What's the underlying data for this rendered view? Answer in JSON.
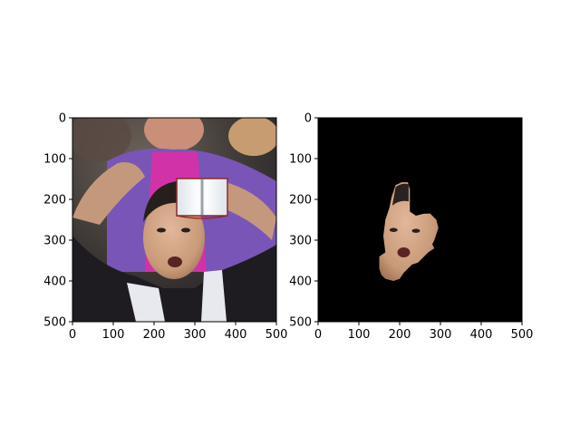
{
  "chart_data": [
    {
      "type": "image",
      "title": "",
      "xlabel": "",
      "ylabel": "",
      "xlim": [
        0,
        500
      ],
      "ylim": [
        500,
        0
      ],
      "xticks": [
        0,
        100,
        200,
        300,
        400,
        500
      ],
      "yticks": [
        0,
        100,
        200,
        300,
        400,
        500
      ],
      "xtick_labels": [
        "0",
        "100",
        "200",
        "300",
        "400",
        "500"
      ],
      "ytick_labels": [
        "0",
        "100",
        "200",
        "300",
        "400",
        "500"
      ],
      "grid": false,
      "content": "photo of man in crowd with hands on head, mouth open; white book-shaped occlusion patch",
      "occluder": {
        "type": "open-book",
        "x_range": [
          255,
          380
        ],
        "y_range": [
          150,
          240
        ]
      }
    },
    {
      "type": "image",
      "title": "",
      "xlabel": "",
      "ylabel": "",
      "xlim": [
        0,
        500
      ],
      "ylim": [
        500,
        0
      ],
      "xticks": [
        0,
        100,
        200,
        300,
        400,
        500
      ],
      "yticks": [
        0,
        100,
        200,
        300,
        400,
        500
      ],
      "xtick_labels": [
        "0",
        "100",
        "200",
        "300",
        "400",
        "500"
      ],
      "ytick_labels": [
        "0",
        "100",
        "200",
        "300",
        "400",
        "500"
      ],
      "grid": false,
      "content": "face segmentation mask on black background",
      "background": "#000000",
      "mask_outline": [
        [
          190,
          165
        ],
        [
          205,
          158
        ],
        [
          220,
          158
        ],
        [
          225,
          175
        ],
        [
          225,
          230
        ],
        [
          240,
          240
        ],
        [
          260,
          235
        ],
        [
          275,
          235
        ],
        [
          290,
          250
        ],
        [
          295,
          270
        ],
        [
          285,
          300
        ],
        [
          280,
          310
        ],
        [
          285,
          320
        ],
        [
          270,
          330
        ],
        [
          255,
          345
        ],
        [
          245,
          355
        ],
        [
          230,
          360
        ],
        [
          210,
          380
        ],
        [
          200,
          395
        ],
        [
          185,
          400
        ],
        [
          165,
          395
        ],
        [
          155,
          385
        ],
        [
          150,
          370
        ],
        [
          150,
          340
        ],
        [
          165,
          330
        ],
        [
          160,
          290
        ],
        [
          165,
          250
        ],
        [
          175,
          220
        ],
        [
          180,
          195
        ]
      ]
    }
  ],
  "colors": {
    "axis": "#000000",
    "mask_background": "#000000",
    "skin": "#c89a78",
    "jacket_purple": "#7a55b8",
    "magenta_shirt": "#d232a8",
    "dark_coat": "#1e1c20"
  }
}
